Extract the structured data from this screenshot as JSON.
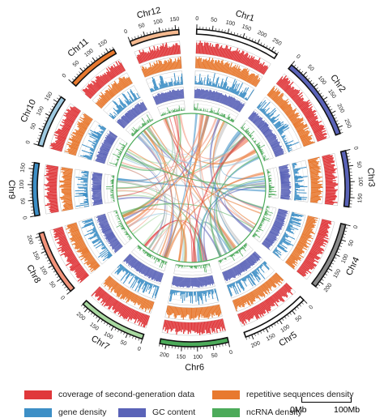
{
  "colors": {
    "coverage": "#e0383b",
    "repeat": "#e8792f",
    "gene": "#3d8fc6",
    "gc": "#5a63b8",
    "ncrna": "#4cab5a",
    "track_bg": "#eeeeee",
    "grid": "#bdbdbd"
  },
  "chromosomes": [
    {
      "name": "Chr1",
      "size": 270,
      "color": "#ffffff",
      "ticks": [
        "0",
        "50",
        "100",
        "150",
        "200",
        "250"
      ]
    },
    {
      "name": "Chr2",
      "size": 270,
      "color": "#5a63b8",
      "ticks": [
        "0",
        "50",
        "100",
        "150",
        "200",
        "250"
      ]
    },
    {
      "name": "Chr3",
      "size": 180,
      "color": "#5a63b8",
      "ticks": [
        "0",
        "50",
        "100",
        "150"
      ]
    },
    {
      "name": "Chr4",
      "size": 220,
      "color": "#8a8a8a",
      "ticks": [
        "0",
        "50",
        "100",
        "150",
        "200"
      ]
    },
    {
      "name": "Chr5",
      "size": 220,
      "color": "#ffffff",
      "ticks": [
        "0",
        "50",
        "100",
        "150",
        "200"
      ]
    },
    {
      "name": "Chr6",
      "size": 220,
      "color": "#4cab5a",
      "ticks": [
        "0",
        "50",
        "100",
        "150",
        "200"
      ]
    },
    {
      "name": "Chr7",
      "size": 220,
      "color": "#a8d8a0",
      "ticks": [
        "0",
        "50",
        "100",
        "150",
        "200"
      ]
    },
    {
      "name": "Chr8",
      "size": 210,
      "color": "#f2937a",
      "ticks": [
        "0",
        "50",
        "100",
        "150",
        "200"
      ]
    },
    {
      "name": "Chr9",
      "size": 170,
      "color": "#3d8fc6",
      "ticks": [
        "0",
        "50",
        "100",
        "150"
      ]
    },
    {
      "name": "Chr10",
      "size": 170,
      "color": "#9ecae1",
      "ticks": [
        "0",
        "50",
        "100",
        "150"
      ]
    },
    {
      "name": "Chr11",
      "size": 170,
      "color": "#e8792f",
      "ticks": [
        "0",
        "50",
        "100",
        "150"
      ]
    },
    {
      "name": "Chr12",
      "size": 160,
      "color": "#f5b98f",
      "ticks": [
        "0",
        "50",
        "100",
        "150"
      ]
    }
  ],
  "legend": [
    {
      "label": "coverage of second-generation data",
      "color": "#e0383b"
    },
    {
      "label": "repetitive sequences density",
      "color": "#e8792f"
    },
    {
      "label": "gene density",
      "color": "#3d8fc6"
    },
    {
      "label": "GC content",
      "color": "#5a63b8"
    },
    {
      "label": "ncRNA density",
      "color": "#4cab5a"
    }
  ],
  "scale": {
    "left": "0Mb",
    "right": "100Mb"
  }
}
